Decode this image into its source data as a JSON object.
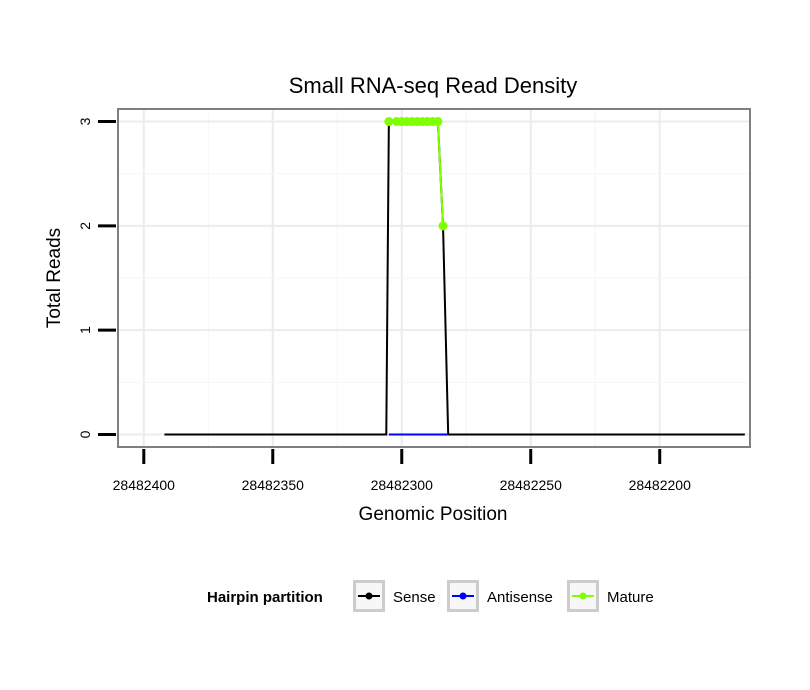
{
  "chart_data": {
    "type": "line",
    "title": "Small RNA-seq Read Density",
    "xlabel": "Genomic Position",
    "ylabel": "Total Reads",
    "xlim": [
      28482410,
      28482165
    ],
    "x_reversed": true,
    "ylim": [
      -0.12,
      3.12
    ],
    "x_ticks": [
      28482400,
      28482350,
      28482300,
      28482250,
      28482200
    ],
    "x_tick_labels": [
      "28482400",
      "28482350",
      "28482300",
      "28482250",
      "28482200"
    ],
    "y_ticks": [
      0,
      1,
      2,
      3
    ],
    "y_tick_labels": [
      "0",
      "1",
      "2",
      "3"
    ],
    "grid": true,
    "legend_position": "bottom",
    "legend_title": "Hairpin partition",
    "series": [
      {
        "name": "Sense",
        "color": "#000000",
        "x": [
          28482392,
          28482306,
          28482305,
          28482286,
          28482284,
          28482282,
          28482167
        ],
        "y": [
          0,
          0,
          3,
          3,
          2,
          0,
          0
        ],
        "points": false
      },
      {
        "name": "Antisense",
        "color": "#0000ff",
        "x": [
          28482305,
          28482282
        ],
        "y": [
          0,
          0
        ],
        "points": false
      },
      {
        "name": "Mature",
        "color": "#7fff00",
        "x": [
          28482305,
          28482302,
          28482300,
          28482298,
          28482296,
          28482294,
          28482292,
          28482290,
          28482288,
          28482286,
          28482284
        ],
        "y": [
          3,
          3,
          3,
          3,
          3,
          3,
          3,
          3,
          3,
          3,
          2
        ],
        "points": true
      }
    ]
  }
}
